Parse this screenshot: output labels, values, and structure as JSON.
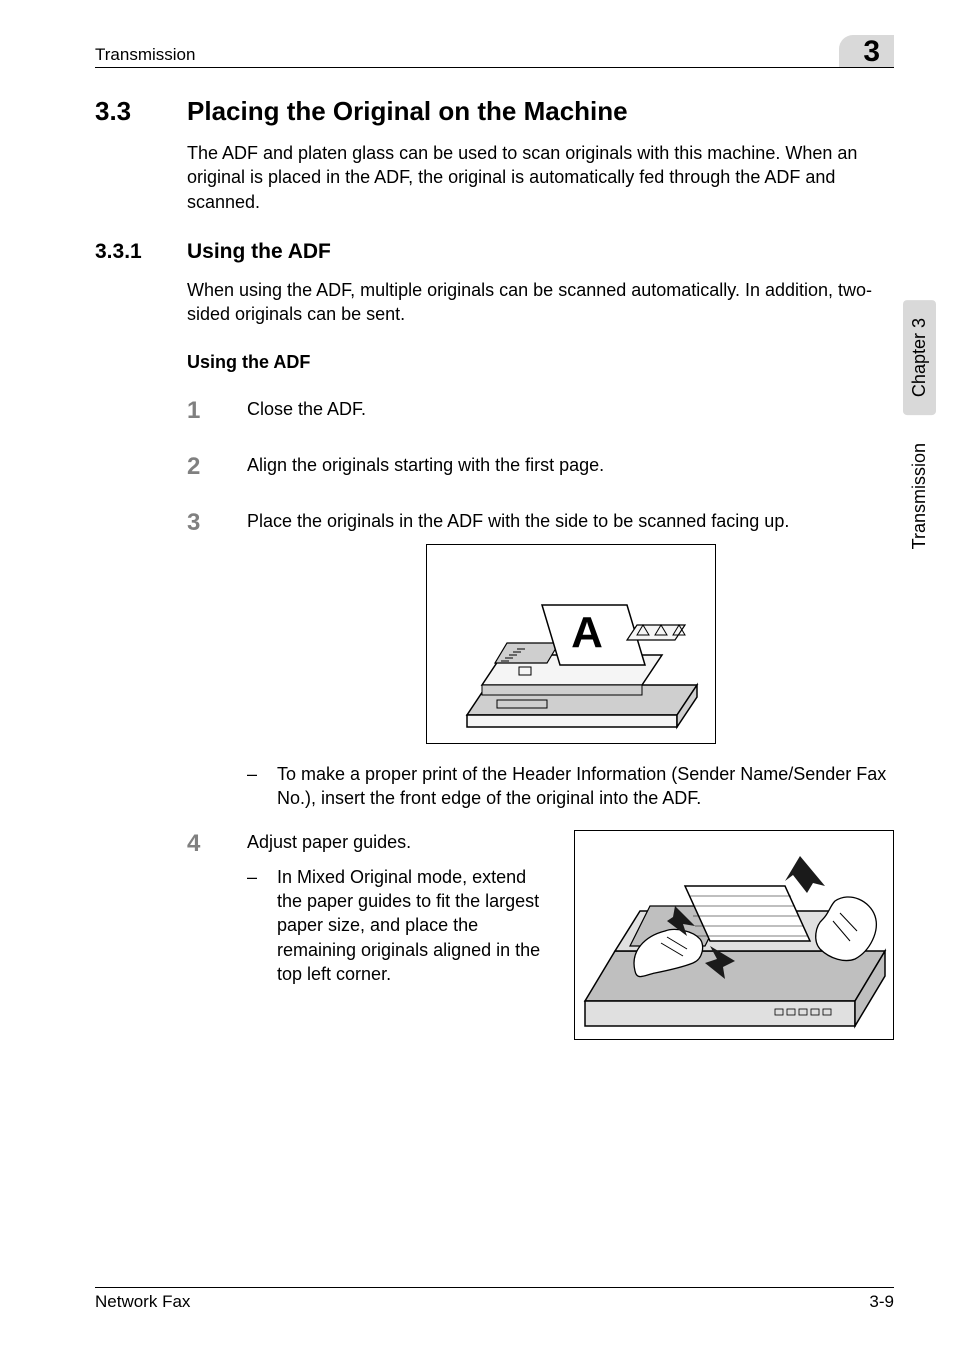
{
  "header": {
    "left": "Transmission",
    "chapter_big": "3"
  },
  "side": {
    "chapter": "Chapter 3",
    "transmission": "Transmission"
  },
  "section": {
    "num": "3.3",
    "title": "Placing the Original on the Machine",
    "intro": "The ADF and platen glass can be used to scan originals with this machine. When an original is placed in the ADF, the original is automatically fed through the ADF and scanned."
  },
  "subsection": {
    "num": "3.3.1",
    "title": "Using the ADF",
    "intro": "When using the ADF, multiple originals can be scanned automatically. In addition, two-sided originals can be sent.",
    "heading": "Using the ADF"
  },
  "steps": {
    "s1": {
      "n": "1",
      "text": "Close the ADF."
    },
    "s2": {
      "n": "2",
      "text": "Align the originals starting with the first page."
    },
    "s3": {
      "n": "3",
      "text": "Place the originals in the ADF with the side to be scanned facing up.",
      "bullet": "To make a proper print of the Header Information (Sender Name/Sender Fax No.), insert the front edge of the original into the ADF."
    },
    "s4": {
      "n": "4",
      "text": "Adjust paper guides.",
      "bullet": "In Mixed Original mode, extend the paper guides to fit the largest paper size, and place the remaining originals aligned in the top left corner."
    }
  },
  "figure1": {
    "letter": "A",
    "stroke": "#000000",
    "fill_base": "#cfcfcf",
    "fill_light": "#f5f5f5",
    "fill_paper": "#ffffff"
  },
  "figure2": {
    "stroke": "#000000",
    "fill_base": "#bfbfbf",
    "fill_mid": "#e0e0e0",
    "fill_paper": "#ffffff",
    "fill_arrow": "#1a1a1a"
  },
  "footer": {
    "left": "Network Fax",
    "right": "3-9"
  }
}
